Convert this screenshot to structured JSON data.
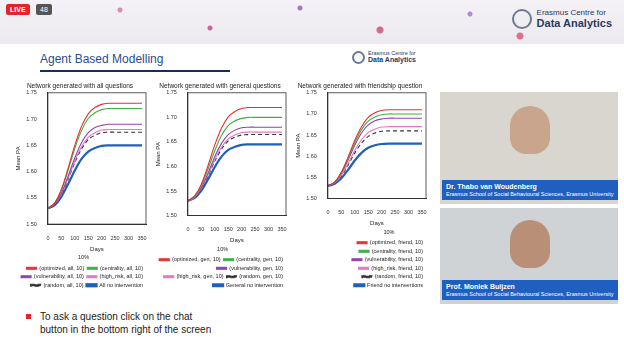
{
  "page": {
    "live": "LIVE",
    "viewers": 48,
    "logo": [
      "Erasmus Centre for",
      "Data Analytics"
    ],
    "section_title": "Agent Based Modelling",
    "content_logo": [
      "Erasmus Centre for",
      "Data Analytics"
    ],
    "speakers": [
      {
        "name": "Dr. Thabo van Woudenberg",
        "affiliation": "Erasmus School of Social Behavioural Sciences, Erasmus University"
      },
      {
        "name": "Prof. Moniek Buijzen",
        "affiliation": "Erasmus School of Social Behavioural Sciences, Erasmus University"
      }
    ],
    "footer": [
      "To ask a question click on the chat",
      "button in the bottom right of the screen"
    ]
  },
  "chart_data": [
    {
      "type": "line",
      "title": "Network generated with all questions",
      "x_label": "Days",
      "y_label": "Mean PA",
      "x": [
        0,
        25,
        50,
        75,
        100,
        125,
        150,
        175,
        200,
        225,
        250,
        275,
        300,
        325,
        350
      ],
      "xlim": [
        0,
        365
      ],
      "xticks": [
        0,
        50,
        100,
        150,
        200,
        250,
        300,
        350
      ],
      "ylim": [
        1.5,
        1.75
      ],
      "yticks": [
        {
          "value": 1.5,
          "label": "1.50"
        },
        {
          "value": 1.55,
          "label": "1.55"
        },
        {
          "value": 1.6,
          "label": "1.60"
        },
        {
          "value": 1.65,
          "label": "1.65"
        },
        {
          "value": 1.7,
          "label": "1.70"
        },
        {
          "value": 1.75,
          "label": "1.75"
        }
      ],
      "grid": false,
      "legend": "bottom",
      "legend_title": "10%",
      "series": [
        {
          "name": "(optimized, all, 10)",
          "color": "#e8312f",
          "values": [
            1.53,
            1.54,
            1.566,
            1.606,
            1.65,
            1.686,
            1.71,
            1.722,
            1.728,
            1.73,
            1.73,
            1.73,
            1.73,
            1.73,
            1.73
          ]
        },
        {
          "name": "(centrality, all, 10)",
          "color": "#3cb043",
          "values": [
            1.53,
            1.54,
            1.564,
            1.602,
            1.644,
            1.678,
            1.701,
            1.712,
            1.718,
            1.72,
            1.72,
            1.72,
            1.72,
            1.72,
            1.72
          ]
        },
        {
          "name": "(vulnerability, all, 10)",
          "color": "#8e44ad",
          "values": [
            1.53,
            1.538,
            1.559,
            1.591,
            1.626,
            1.655,
            1.674,
            1.684,
            1.688,
            1.69,
            1.69,
            1.69,
            1.69,
            1.69,
            1.69
          ]
        },
        {
          "name": "(high_risk, all, 10)",
          "color": "#e377c2",
          "values": [
            1.53,
            1.538,
            1.557,
            1.587,
            1.62,
            1.647,
            1.665,
            1.674,
            1.679,
            1.68,
            1.68,
            1.68,
            1.68,
            1.68,
            1.68
          ]
        },
        {
          "name": "(random, all, 10)",
          "color": "#333333",
          "line_style": "dashed",
          "values": [
            1.53,
            1.537,
            1.556,
            1.585,
            1.617,
            1.643,
            1.661,
            1.669,
            1.674,
            1.675,
            1.675,
            1.675,
            1.675,
            1.675,
            1.675
          ]
        },
        {
          "name": "All no intervention",
          "color": "#1f5fbf",
          "values": [
            1.53,
            1.536,
            1.552,
            1.576,
            1.602,
            1.624,
            1.638,
            1.645,
            1.649,
            1.65,
            1.65,
            1.65,
            1.65,
            1.65,
            1.65
          ]
        }
      ]
    },
    {
      "type": "line",
      "title": "Network generated with general questions",
      "x_label": "Days",
      "y_label": "Mean PA",
      "x": [
        0,
        25,
        50,
        75,
        100,
        125,
        150,
        175,
        200,
        225,
        250,
        275,
        300,
        325,
        350
      ],
      "xlim": [
        0,
        365
      ],
      "xticks": [
        0,
        50,
        100,
        150,
        200,
        250,
        300,
        350
      ],
      "ylim": [
        1.5,
        1.75
      ],
      "yticks": [
        {
          "value": 1.5,
          "label": "1.50"
        },
        {
          "value": 1.55,
          "label": "1.55"
        },
        {
          "value": 1.6,
          "label": "1.60"
        },
        {
          "value": 1.65,
          "label": "1.65"
        },
        {
          "value": 1.7,
          "label": "1.70"
        },
        {
          "value": 1.75,
          "label": "1.75"
        }
      ],
      "grid": false,
      "legend": "bottom",
      "legend_title": "10%",
      "series": [
        {
          "name": "(optimized, gen, 10)",
          "color": "#e8312f",
          "values": [
            1.53,
            1.54,
            1.564,
            1.602,
            1.644,
            1.678,
            1.701,
            1.712,
            1.718,
            1.72,
            1.72,
            1.72,
            1.72,
            1.72,
            1.72
          ]
        },
        {
          "name": "(centrality, gen, 10)",
          "color": "#3cb043",
          "values": [
            1.53,
            1.539,
            1.561,
            1.595,
            1.632,
            1.663,
            1.683,
            1.693,
            1.698,
            1.7,
            1.7,
            1.7,
            1.7,
            1.7,
            1.7
          ]
        },
        {
          "name": "(vulnerability, gen, 10)",
          "color": "#8e44ad",
          "values": [
            1.53,
            1.538,
            1.557,
            1.587,
            1.62,
            1.647,
            1.665,
            1.674,
            1.679,
            1.68,
            1.68,
            1.68,
            1.68,
            1.68,
            1.68
          ]
        },
        {
          "name": "(high_risk, gen, 10)",
          "color": "#e377c2",
          "values": [
            1.53,
            1.537,
            1.555,
            1.583,
            1.614,
            1.639,
            1.656,
            1.664,
            1.669,
            1.67,
            1.67,
            1.67,
            1.67,
            1.67,
            1.67
          ]
        },
        {
          "name": "(random, gen, 10)",
          "color": "#333333",
          "line_style": "dashed",
          "values": [
            1.53,
            1.537,
            1.554,
            1.581,
            1.611,
            1.635,
            1.652,
            1.66,
            1.664,
            1.665,
            1.665,
            1.665,
            1.665,
            1.665,
            1.665
          ]
        },
        {
          "name": "General no intervention",
          "color": "#1f5fbf",
          "values": [
            1.53,
            1.536,
            1.551,
            1.574,
            1.599,
            1.62,
            1.634,
            1.64,
            1.644,
            1.645,
            1.645,
            1.645,
            1.645,
            1.645,
            1.645
          ]
        }
      ]
    },
    {
      "type": "line",
      "title": "Network generated with friendship question",
      "x_label": "Days",
      "y_label": "Mean PA",
      "x": [
        0,
        25,
        50,
        75,
        100,
        125,
        150,
        175,
        200,
        225,
        250,
        275,
        300,
        325,
        350
      ],
      "xlim": [
        0,
        365
      ],
      "xticks": [
        0,
        50,
        100,
        150,
        200,
        250,
        300,
        350
      ],
      "ylim": [
        1.5,
        1.75
      ],
      "yticks": [
        {
          "value": 1.5,
          "label": "1.50"
        },
        {
          "value": 1.55,
          "label": "1.55"
        },
        {
          "value": 1.6,
          "label": "1.60"
        },
        {
          "value": 1.65,
          "label": "1.65"
        },
        {
          "value": 1.7,
          "label": "1.70"
        },
        {
          "value": 1.75,
          "label": "1.75"
        }
      ],
      "grid": false,
      "legend": "bottom",
      "legend_title": "10%",
      "series": [
        {
          "name": "(optimized, friend, 10)",
          "color": "#e8312f",
          "values": [
            1.53,
            1.539,
            1.562,
            1.598,
            1.638,
            1.67,
            1.692,
            1.703,
            1.708,
            1.71,
            1.71,
            1.71,
            1.71,
            1.71,
            1.71
          ]
        },
        {
          "name": "(centrality, friend, 10)",
          "color": "#3cb043",
          "values": [
            1.53,
            1.539,
            1.561,
            1.595,
            1.632,
            1.663,
            1.683,
            1.693,
            1.698,
            1.7,
            1.7,
            1.7,
            1.7,
            1.7,
            1.7
          ]
        },
        {
          "name": "(vulnerability, friend, 10)",
          "color": "#8e44ad",
          "values": [
            1.53,
            1.538,
            1.559,
            1.591,
            1.626,
            1.655,
            1.674,
            1.684,
            1.688,
            1.69,
            1.69,
            1.69,
            1.69,
            1.69,
            1.69
          ]
        },
        {
          "name": "(high_risk, friend, 10)",
          "color": "#e377c2",
          "values": [
            1.53,
            1.537,
            1.555,
            1.583,
            1.614,
            1.639,
            1.656,
            1.664,
            1.669,
            1.67,
            1.67,
            1.67,
            1.67,
            1.67,
            1.67
          ]
        },
        {
          "name": "(random, friend, 10)",
          "color": "#333333",
          "line_style": "dashed",
          "values": [
            1.53,
            1.537,
            1.553,
            1.579,
            1.608,
            1.631,
            1.647,
            1.655,
            1.659,
            1.66,
            1.66,
            1.66,
            1.66,
            1.66,
            1.66
          ]
        },
        {
          "name": "Friend no interventions",
          "color": "#1f5fbf",
          "values": [
            1.53,
            1.535,
            1.548,
            1.568,
            1.59,
            1.608,
            1.62,
            1.626,
            1.629,
            1.63,
            1.63,
            1.63,
            1.63,
            1.63,
            1.63
          ]
        }
      ]
    }
  ]
}
